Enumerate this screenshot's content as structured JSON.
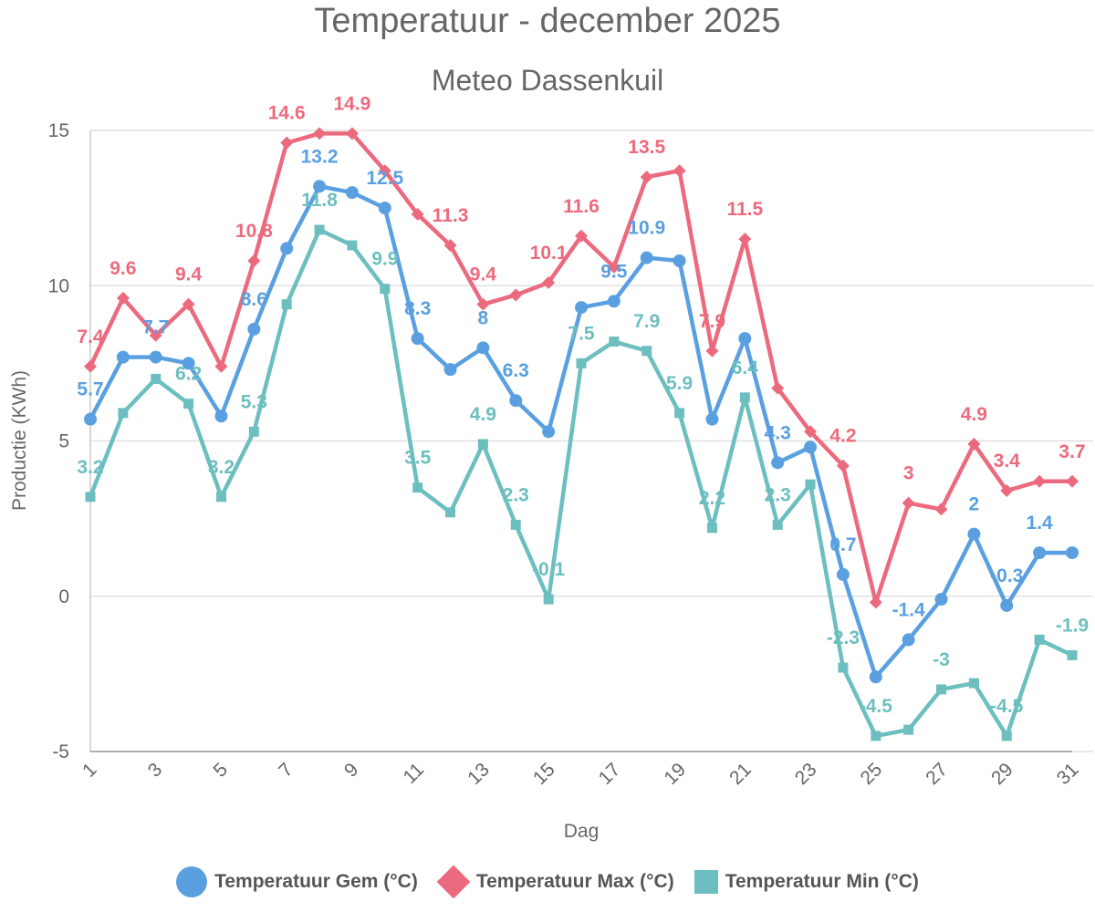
{
  "chart_data": {
    "type": "line",
    "title": "Temperatuur - december 2025",
    "subtitle": "Meteo Dassenkuil",
    "xlabel": "Dag",
    "ylabel": "Productie (KWh)",
    "ylim": [
      -5,
      15
    ],
    "yticks": [
      "-5",
      "0",
      "5",
      "10",
      "15"
    ],
    "x": [
      1,
      2,
      3,
      4,
      5,
      6,
      7,
      8,
      9,
      10,
      11,
      12,
      13,
      14,
      15,
      16,
      17,
      18,
      19,
      20,
      21,
      22,
      23,
      24,
      25,
      26,
      27,
      28,
      29,
      30,
      31
    ],
    "xtick_labels": [
      "1",
      "3",
      "5",
      "7",
      "9",
      "11",
      "13",
      "15",
      "17",
      "19",
      "21",
      "23",
      "25",
      "27",
      "29",
      "31"
    ],
    "series": [
      {
        "name": "Temperatuur Gem (°C)",
        "color": "#5aa0e0",
        "marker": "circle",
        "values": [
          5.7,
          7.7,
          7.7,
          7.5,
          5.8,
          8.6,
          11.2,
          13.2,
          13.0,
          12.5,
          8.3,
          7.3,
          8.0,
          6.3,
          5.3,
          9.3,
          9.5,
          10.9,
          10.8,
          5.7,
          8.3,
          4.3,
          4.8,
          0.7,
          -2.6,
          -1.4,
          -0.1,
          2.0,
          -0.3,
          1.4,
          1.4
        ],
        "labels": [
          "5.7",
          "",
          "7.7",
          "",
          "",
          "8.6",
          "",
          "13.2",
          "",
          "12.5",
          "8.3",
          "",
          "8",
          "6.3",
          "",
          "",
          "9.5",
          "10.9",
          "",
          "",
          "",
          "4.3",
          "",
          "0.7",
          "",
          "-1.4",
          "",
          "2",
          "-0.3",
          "1.4",
          ""
        ]
      },
      {
        "name": "Temperatuur Max (°C)",
        "color": "#ec6a7d",
        "marker": "diamond",
        "values": [
          7.4,
          9.6,
          8.4,
          9.4,
          7.4,
          10.8,
          14.6,
          14.9,
          14.9,
          13.7,
          12.3,
          11.3,
          9.4,
          9.7,
          10.1,
          11.6,
          10.6,
          13.5,
          13.7,
          7.9,
          11.5,
          6.7,
          5.3,
          4.2,
          -0.2,
          3.0,
          2.8,
          4.9,
          3.4,
          3.7,
          3.7
        ],
        "labels": [
          "7.4",
          "9.6",
          "",
          "9.4",
          "",
          "10.8",
          "14.6",
          "",
          "14.9",
          "",
          "",
          "11.3",
          "9.4",
          "",
          "10.1",
          "11.6",
          "",
          "13.5",
          "",
          "7.9",
          "11.5",
          "",
          "",
          "4.2",
          "",
          "3",
          "",
          "4.9",
          "3.4",
          "",
          "3.7"
        ]
      },
      {
        "name": "Temperatuur Min (°C)",
        "color": "#6dbfbf",
        "marker": "square",
        "values": [
          3.2,
          5.9,
          7.0,
          6.2,
          3.2,
          5.3,
          9.4,
          11.8,
          11.3,
          9.9,
          3.5,
          2.7,
          4.9,
          2.3,
          -0.1,
          7.5,
          8.2,
          7.9,
          5.9,
          2.2,
          6.4,
          2.3,
          3.6,
          -2.3,
          -4.5,
          -4.3,
          -3.0,
          -2.8,
          -4.5,
          -1.4,
          -1.9
        ],
        "labels": [
          "3.2",
          "",
          "",
          "6.2",
          "3.2",
          "5.3",
          "",
          "11.8",
          "",
          "9.9",
          "3.5",
          "",
          "4.9",
          "2.3",
          "-0.1",
          "7.5",
          "",
          "7.9",
          "5.9",
          "2.2",
          "6.4",
          "2.3",
          "",
          "-2.3",
          "-4.5",
          "",
          "-3",
          "",
          "-4.5",
          "",
          "-1.9"
        ]
      }
    ]
  }
}
